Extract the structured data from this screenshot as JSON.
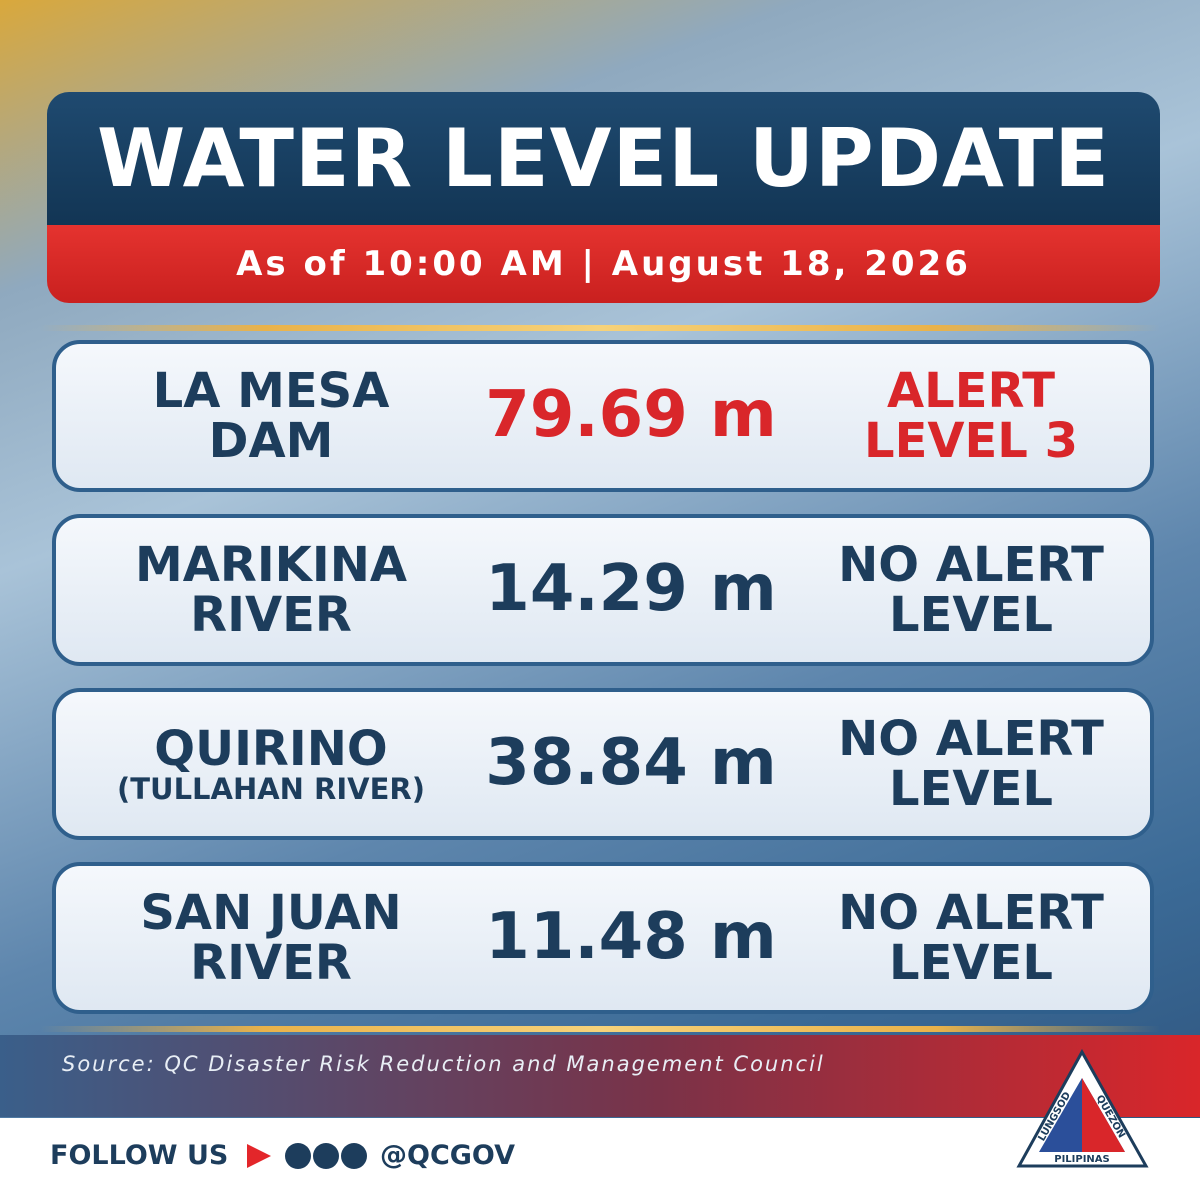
{
  "header": {
    "title": "WATER LEVEL UPDATE",
    "subtitle": "As of 10:00 AM | August 18, 2026"
  },
  "rows": [
    {
      "name": [
        "LA MESA",
        "DAM"
      ],
      "level": "79.69 m",
      "alert": [
        "ALERT",
        "LEVEL 3"
      ],
      "color": "#d9262a"
    },
    {
      "name": [
        "MARIKINA",
        "RIVER"
      ],
      "level": "14.29 m",
      "alert": [
        "NO ALERT",
        "LEVEL"
      ],
      "color": "#1d3d5c"
    },
    {
      "name": [
        "QUIRINO",
        "(TULLAHAN RIVER)"
      ],
      "level": "38.84 m",
      "alert": [
        "NO ALERT",
        "LEVEL"
      ],
      "color": "#1d3d5c"
    },
    {
      "name": [
        "SAN JUAN",
        "RIVER"
      ],
      "level": "11.48 m",
      "alert": [
        "NO ALERT",
        "LEVEL"
      ],
      "color": "#1d3d5c"
    }
  ],
  "source": "Source: QC Disaster Risk Reduction and Management Council",
  "footer": {
    "follow": "FOLLOW US",
    "handle": "@QCGOV"
  },
  "logo": {
    "left": "LUNGSOD",
    "right": "QUEZON",
    "bottom": "PILIPINAS"
  }
}
